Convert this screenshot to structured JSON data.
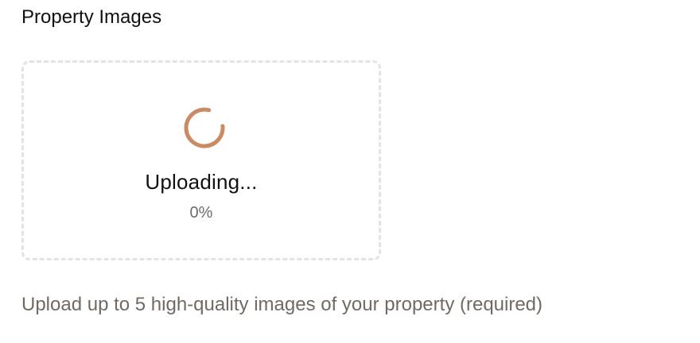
{
  "section": {
    "title": "Property Images"
  },
  "upload": {
    "status_label": "Uploading...",
    "progress_label": "0%",
    "progress": 0,
    "spinner_icon": "loading-spinner-icon",
    "spinner_color": "#c98a64",
    "border_color": "#e3e3e3"
  },
  "helper": {
    "text": "Upload up to 5 high-quality images of your property (required)"
  },
  "colors": {
    "title": "#111111",
    "helper_text": "#706a64",
    "percent_text": "#6b6b6b"
  }
}
